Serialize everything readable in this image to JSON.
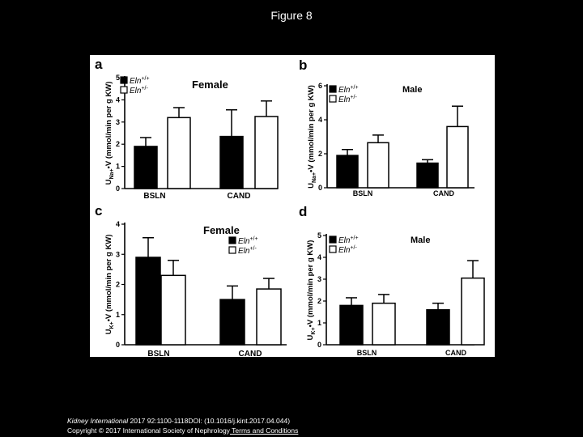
{
  "page_title": "Figure 8",
  "citation": {
    "journal": "Kidney International",
    "details": " 2017 92:1100-1118DOI: (10.1016/j.kint.2017.04.044)",
    "copyright": "Copyright © 2017 International Society of Nephrology",
    "link_label": " Terms and Conditions"
  },
  "chart_data": [
    {
      "type": "bar",
      "panel": "a",
      "subtitle": "Female",
      "ylabel_main": "U",
      "ylabel_sub": "Na+",
      "ylabel_rest": "V (mmol/min per g KW)",
      "ylim": [
        0,
        5
      ],
      "yticks": [
        0,
        1,
        2,
        3,
        4,
        5
      ],
      "categories": [
        "BSLN",
        "CAND"
      ],
      "series": [
        {
          "name": "Eln+/+",
          "values": [
            1.9,
            2.35
          ],
          "errors": [
            0.4,
            1.2
          ],
          "color": "#000000"
        },
        {
          "name": "Eln+/-",
          "values": [
            3.2,
            3.25
          ],
          "errors": [
            0.45,
            0.7
          ],
          "color": "#ffffff"
        }
      ],
      "legend": "top-left"
    },
    {
      "type": "bar",
      "panel": "b",
      "subtitle": "Male",
      "ylabel_main": "U",
      "ylabel_sub": "Na+",
      "ylabel_rest": "V (mmol/min per g KW)",
      "ylim": [
        0,
        6
      ],
      "yticks": [
        0,
        2,
        4,
        6
      ],
      "categories": [
        "BSLN",
        "CAND"
      ],
      "series": [
        {
          "name": "Eln+/+",
          "values": [
            1.9,
            1.45
          ],
          "errors": [
            0.35,
            0.2
          ],
          "color": "#000000"
        },
        {
          "name": "Eln+/-",
          "values": [
            2.65,
            3.6
          ],
          "errors": [
            0.45,
            1.2
          ],
          "color": "#ffffff"
        }
      ],
      "legend": "top-left"
    },
    {
      "type": "bar",
      "panel": "c",
      "subtitle": "Female",
      "ylabel_main": "U",
      "ylabel_sub": "K+",
      "ylabel_rest": "V (mmol/min per g KW)",
      "ylim": [
        0,
        4
      ],
      "yticks": [
        0,
        1,
        2,
        3,
        4
      ],
      "categories": [
        "BSLN",
        "CAND"
      ],
      "series": [
        {
          "name": "Eln+/+",
          "values": [
            2.9,
            1.5
          ],
          "errors": [
            0.65,
            0.45
          ],
          "color": "#000000"
        },
        {
          "name": "Eln+/-",
          "values": [
            2.3,
            1.85
          ],
          "errors": [
            0.5,
            0.35
          ],
          "color": "#ffffff"
        }
      ],
      "legend": "top-right"
    },
    {
      "type": "bar",
      "panel": "d",
      "subtitle": "Male",
      "ylabel_main": "U",
      "ylabel_sub": "K+",
      "ylabel_rest": "V (mmol/min per g KW)",
      "ylim": [
        0,
        5
      ],
      "yticks": [
        0,
        1,
        2,
        3,
        4,
        5
      ],
      "categories": [
        "BSLN",
        "CAND"
      ],
      "series": [
        {
          "name": "Eln+/+",
          "values": [
            1.8,
            1.6
          ],
          "errors": [
            0.35,
            0.3
          ],
          "color": "#000000"
        },
        {
          "name": "Eln+/-",
          "values": [
            1.9,
            3.05
          ],
          "errors": [
            0.4,
            0.8
          ],
          "color": "#ffffff"
        }
      ],
      "legend": "top-left"
    }
  ]
}
